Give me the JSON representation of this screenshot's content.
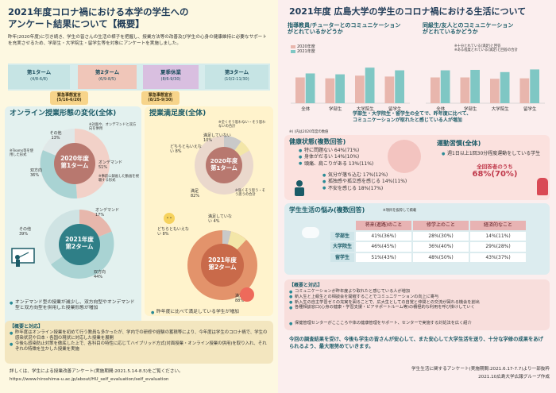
{
  "left": {
    "title_line1": "2021年度コロナ禍における本学の学生への",
    "title_line2": "アンケート結果について【概要】",
    "intro": "昨年(2020年度)に引き続き、学生の皆さんの生活の様子を把握し、授業方法等の改善及び学生の心身の健康維持に必要なサポートを充実させるため、学部生・大学院生・留学生等を対象にアンケートを実施しました。",
    "terms": [
      {
        "label": "第1ターム",
        "dates": "(4/8-6/8)"
      },
      {
        "label": "第2ターム",
        "dates": "(6/9-8/5)"
      },
      {
        "label": "夏季休業",
        "dates": "(8/6-9/30)"
      },
      {
        "label": "第3ターム",
        "dates": "(10/2-11/30)"
      }
    ],
    "emergency1": {
      "label": "緊急事態宣言",
      "dates": "(5/16-6/20)"
    },
    "emergency2": {
      "label": "緊急事態宣言",
      "dates": "(8/25-9/30)"
    },
    "online_head": "オンライン授業形態の変化(全体)",
    "online_2020": {
      "center_year": "2020年度",
      "center_term": "第1ターム",
      "ondemand": "オンデマンド 51%",
      "both": "双方向 36%",
      "teams": "※Teams等を使用した形式",
      "other": "その他 13%",
      "note1": "※対面や、オンデマンドと双方向を併用",
      "note2": "※事前に録画した動画を視聴する形式"
    },
    "online_2021": {
      "center_year": "2021年度",
      "center_term": "第2ターム",
      "ondemand": "オンデマンド 17%",
      "other": "その他 39%",
      "both": "双方向 44%"
    },
    "online_bullets": [
      "オンデマンド型の授業が減少し、双方向型やオンデマンド型と双方向型を併用した授業形態が増加"
    ],
    "sat_head": "授業満足度(全体)",
    "sat_2020": {
      "center_year": "2020年度",
      "center_term": "第1ターム",
      "unsat": "満足していない 10%",
      "neutral": "どちらともいえない 8%",
      "sat": "満足 82%",
      "note1": "※全くそう思わない・そう思わないの合計",
      "note2": "※強くそう思う・そう思うの合計"
    },
    "sat_2021": {
      "center_year": "2021年度",
      "center_term": "第2ターム",
      "unsat": "満足していない 4%",
      "neutral": "どちらともいえない 8%",
      "sat": "満足 88%"
    },
    "sat_bullet": "昨年度に比べて満足している学生が増加",
    "overview_head": "【概要と対応】",
    "overview_items": [
      "昨年度はオンライン授業を初めて行う教員も多かったが、学内での研修や経験の蓄積等により、今年度は学生のコロナ禍で、学生の感染状況や日本・各国の現状に対応した授業を展開",
      "今後も感染防止対策を徹底した上で、各科目の特性に応じてハイブリッド方式(対面授業・オンライン授業の併用)を取り入れ、それぞれの特徴を生かした授業を実施"
    ],
    "footer1": "詳しくは、学生による授業改善アンケート(実施期間:2021.5.14-8.5)をご覧ください。",
    "footer2": "https://www.hiroshima-u.ac.jp/about/HU_self_evaluation/self_evaluation"
  },
  "right": {
    "title": "2021年度 広島大学の学生のコロナ禍における生活について",
    "chart1_title1": "指導教員/チューターとのコミュニケーション",
    "chart1_title2": "がとれているかどうか",
    "chart2_title1": "同級生/友人とのコミュニケーション",
    "chart2_title2": "がとれているかどうか",
    "legend_2020": "2020年度",
    "legend_2021": "2021年度",
    "chart2_note1": "※十分とれている(満足)と回答",
    "chart2_note2": "※ある程度とれている(満足)と回答の合計",
    "chart_summary1": "学部生・大学院生・留学生の全てで、昨年度に比べて、",
    "chart_summary2": "コミュニケーションが取れたと感じている人が増加",
    "paren_note": "※( )内は2020年度の数値",
    "health_head": "健康状態(複数回答)",
    "health_items": [
      "特に問題ない 64%(71%)",
      "身体がだるい 14%(10%)",
      "頭痛、肩こりがある 13%(11%)"
    ],
    "health_items2": [
      "気分が落ち込む 17%(12%)",
      "孤独感や孤立感を感じる 14%(11%)",
      "不安を感じる 18%(17%)"
    ],
    "exercise_head": "運動習慣(全体)",
    "exercise_text": "週1日以上1回30分程度運動をしている学生",
    "exercise_all_label": "全回答者のうち",
    "exercise_value": "68%(70%)",
    "worries_head": "学生生活の悩み(複数回答)",
    "worries_note": "※項目を抜粋して掲載",
    "worries_cols": [
      "将来(進路)のこと",
      "修学上のこと",
      "経済的なこと"
    ],
    "worries_rows": [
      {
        "label": "学部生",
        "values": [
          "41%(36%)",
          "28%(30%)",
          "14%(11%)"
        ]
      },
      {
        "label": "大学院生",
        "values": [
          "46%(45%)",
          "36%(40%)",
          "29%(28%)"
        ]
      },
      {
        "label": "留学生",
        "values": [
          "51%(43%)",
          "48%(50%)",
          "43%(37%)"
        ]
      }
    ],
    "response_head": "【概要と対応】",
    "response_items": [
      "コミュニケーションが昨年度より取れたと感じている人が増加",
      "新入生と上級生との相談会を開催することでコミュニケーションの向上に寄与",
      "新入生の自主学習ゼミの充実を図ることで、広大生としての自覚と仲間との交流が図れる機会を創出",
      "各種相談窓口(心身の健康・学習支援・ピアサポートルーム等)の積極的な利用を呼び掛けしていく"
    ],
    "response_item2": "保健管理センターがここころや体の健康管理をサポート、センターで実施する対処法を広く紹介",
    "closing": "今回の調査結果を受け、今後も学生の皆さんが安心して、また安心して大学生活を送り、十分な学修の成果をあげられるよう、最大限努めていきます。",
    "footer1": "学生生活に関するアンケート(実施期間:2021.6.17-7.7)より一部抜粋",
    "footer2": "2021.10広島大学広報グループ作成"
  },
  "chart1": {
    "categories": [
      "全体",
      "学部生",
      "大学院生",
      "留学生"
    ],
    "series": [
      {
        "name": "2020年度",
        "values": [
          58,
          56,
          62,
          60
        ]
      },
      {
        "name": "2021年度",
        "values": [
          67,
          65,
          80,
          74
        ]
      }
    ],
    "ylim": [
      0,
      100
    ]
  },
  "chart2": {
    "categories": [
      "全体",
      "学部生",
      "大学院生",
      "留学生"
    ],
    "series": [
      {
        "name": "2020年度",
        "values": [
          58,
          58,
          55,
          56
        ]
      },
      {
        "name": "2021年度",
        "values": [
          74,
          75,
          70,
          76
        ]
      }
    ],
    "ylim": [
      0,
      100
    ]
  },
  "colors": {
    "c2020": "#e8b6ad",
    "c2021": "#7fc7c4"
  }
}
